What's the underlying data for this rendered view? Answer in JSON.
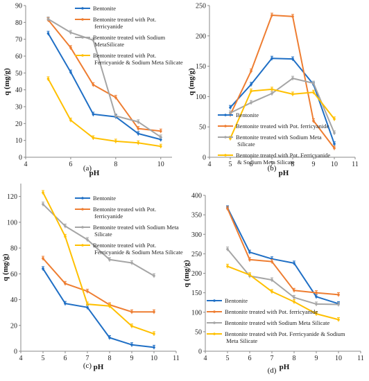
{
  "colors": {
    "bentonite": "#1f6fc5",
    "ferricyanide": "#ee7d31",
    "sodium": "#a5a5a5",
    "both": "#ffc000",
    "axis": "#888888"
  },
  "panels": [
    {
      "label": "(a)"
    },
    {
      "label": "(b)"
    },
    {
      "label": "(c)"
    },
    {
      "label": "(d)"
    }
  ],
  "chart_data": [
    {
      "type": "line",
      "panel": "(a)",
      "xlabel": "pH",
      "ylabel": "q (mg/g)",
      "xlim": [
        4,
        10.5
      ],
      "ylim": [
        0,
        90
      ],
      "xticks": [
        4,
        6,
        8,
        10
      ],
      "yticks": [
        0,
        10,
        20,
        30,
        40,
        50,
        60,
        70,
        80,
        90
      ],
      "legend_position": "top-right",
      "grid": false,
      "series": [
        {
          "name": "Bentonite",
          "color": "#1f6fc5",
          "x": [
            5,
            6,
            7,
            8,
            9,
            10
          ],
          "y": [
            73.5,
            50.5,
            25.5,
            24,
            14,
            10.5
          ]
        },
        {
          "name": "Bentonite treated with Pot. ferricyanide",
          "color": "#ee7d31",
          "x": [
            5,
            6,
            7,
            8,
            9,
            10
          ],
          "y": [
            81.5,
            65,
            43,
            35.5,
            17,
            15.5
          ]
        },
        {
          "name": "Bentonite treated with Sodium MetaSilicate",
          "color": "#a5a5a5",
          "x": [
            5,
            6,
            7,
            8,
            9,
            10
          ],
          "y": [
            82,
            74,
            69.5,
            24.5,
            21,
            12
          ]
        },
        {
          "name": "Bentonite treated with  Pot. Ferricyanide & Sodium Meta Silicate",
          "color": "#ffc000",
          "x": [
            5,
            6,
            7,
            8,
            9,
            10
          ],
          "y": [
            46.5,
            22,
            11.5,
            9.5,
            8.5,
            6.5
          ]
        }
      ]
    },
    {
      "type": "line",
      "panel": "(b)",
      "xlabel": "pH",
      "ylabel": "q (mg/g)",
      "xlim": [
        4,
        11
      ],
      "ylim": [
        0,
        250
      ],
      "xticks": [
        4,
        5,
        6,
        7,
        8,
        9,
        10,
        11
      ],
      "yticks": [
        0,
        50,
        100,
        150,
        200,
        250
      ],
      "legend_position": "bottom-right",
      "grid": false,
      "series": [
        {
          "name": "Bentonite",
          "color": "#1f6fc5",
          "x": [
            5,
            6,
            7,
            8,
            9,
            10
          ],
          "y": [
            82,
            120,
            163,
            162,
            120,
            22
          ]
        },
        {
          "name": "Bentonite treated with Pot. ferricyanide",
          "color": "#ee7d31",
          "x": [
            5,
            6,
            7,
            8,
            9,
            10
          ],
          "y": [
            70,
            142,
            234,
            232,
            60,
            15
          ]
        },
        {
          "name": "Bentonite treated with Sodium Meta Silicate",
          "color": "#a5a5a5",
          "x": [
            5,
            6,
            7,
            8,
            9,
            10
          ],
          "y": [
            73,
            90,
            105,
            130,
            122,
            40
          ]
        },
        {
          "name": "Bentonite treated with Pot. Ferricyanide & Sodium Meta Silicate",
          "color": "#ffc000",
          "x": [
            5,
            6,
            7,
            8,
            9,
            10
          ],
          "y": [
            31,
            109,
            112,
            104,
            107,
            63
          ]
        }
      ]
    },
    {
      "type": "line",
      "panel": "(c)",
      "xlabel": "pH",
      "ylabel": "q (mg/g)",
      "xlim": [
        4,
        11
      ],
      "ylim": [
        0,
        130
      ],
      "xticks": [
        4,
        5,
        6,
        7,
        8,
        9,
        10,
        11
      ],
      "yticks": [
        0,
        20,
        40,
        60,
        80,
        100,
        120
      ],
      "legend_position": "top-right",
      "grid": false,
      "series": [
        {
          "name": "Bentonite",
          "color": "#1f6fc5",
          "x": [
            5,
            6,
            7,
            8,
            9,
            10
          ],
          "y": [
            64,
            37,
            34,
            10.5,
            5,
            3
          ]
        },
        {
          "name": "Bentonite treated with Pot. ferricyanide",
          "color": "#ee7d31",
          "x": [
            5,
            6,
            7,
            8,
            9,
            10
          ],
          "y": [
            72,
            52.5,
            46.5,
            36,
            30.5,
            30.5
          ]
        },
        {
          "name": "Bentonite treated with Sodium Meta Silicate",
          "color": "#a5a5a5",
          "x": [
            5,
            6,
            7,
            8,
            9,
            10
          ],
          "y": [
            114,
            97,
            86.5,
            71,
            68.5,
            58.5
          ]
        },
        {
          "name": "Bentonite treated with Pot. Ferricyanide & Sodium Meta Silicate",
          "color": "#ffc000",
          "x": [
            5,
            6,
            7,
            8,
            9,
            10
          ],
          "y": [
            123,
            89,
            36.5,
            35,
            19.5,
            13.5
          ]
        }
      ]
    },
    {
      "type": "line",
      "panel": "(d)",
      "xlabel": "pH",
      "ylabel": "q (mg/g)",
      "xlim": [
        4,
        11
      ],
      "ylim": [
        0,
        400
      ],
      "xticks": [
        4,
        5,
        6,
        7,
        8,
        9,
        10,
        11
      ],
      "yticks": [
        0,
        50,
        100,
        150,
        200,
        250,
        300,
        350,
        400
      ],
      "legend_position": "bottom-center",
      "grid": false,
      "series": [
        {
          "name": "Bentonite",
          "color": "#1f6fc5",
          "x": [
            5,
            6,
            7,
            8,
            9,
            10
          ],
          "y": [
            368,
            254,
            237,
            226,
            140,
            122
          ]
        },
        {
          "name": "Bentonite treated with Pot. ferricyanide",
          "color": "#ee7d31",
          "x": [
            5,
            6,
            7,
            8,
            9,
            10
          ],
          "y": [
            366,
            235,
            230,
            156,
            150,
            145
          ]
        },
        {
          "name": "Bentonite treated with Sodium Meta Silicate",
          "color": "#a5a5a5",
          "x": [
            5,
            6,
            7,
            8,
            9,
            10
          ],
          "y": [
            262,
            193,
            183,
            138,
            121,
            120
          ]
        },
        {
          "name": "Bentonite treated with Pot. Ferricyanide & Sodium Meta Silicate",
          "color": "#ffc000",
          "x": [
            5,
            6,
            7,
            8,
            9,
            10
          ],
          "y": [
            218,
            196,
            153,
            127,
            96,
            81
          ]
        }
      ]
    }
  ]
}
